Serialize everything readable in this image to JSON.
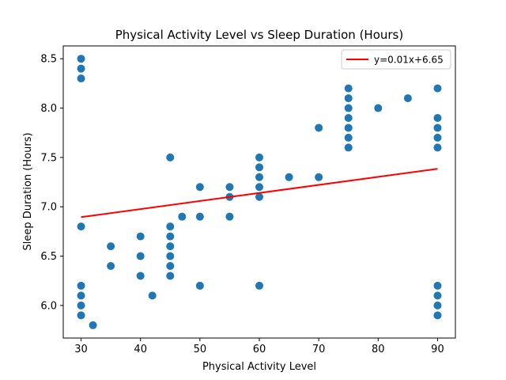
{
  "chart_data": {
    "type": "scatter",
    "title": "Physical Activity Level vs Sleep Duration (Hours)",
    "xlabel": "Physical Activity Level",
    "ylabel": "Sleep Duration (Hours)",
    "xlim": [
      27,
      93
    ],
    "ylim": [
      5.67,
      8.63
    ],
    "xticks": [
      30,
      40,
      50,
      60,
      70,
      80,
      90
    ],
    "yticks": [
      6.0,
      6.5,
      7.0,
      7.5,
      8.0,
      8.5
    ],
    "grid": false,
    "legend_position": "top-right",
    "points_color": "#1f77b4",
    "points": [
      [
        30,
        8.5
      ],
      [
        30,
        8.4
      ],
      [
        30,
        8.3
      ],
      [
        30,
        6.8
      ],
      [
        30,
        6.2
      ],
      [
        30,
        6.1
      ],
      [
        30,
        6.0
      ],
      [
        30,
        5.9
      ],
      [
        32,
        5.8
      ],
      [
        35,
        6.6
      ],
      [
        35,
        6.4
      ],
      [
        40,
        6.7
      ],
      [
        40,
        6.5
      ],
      [
        40,
        6.3
      ],
      [
        42,
        6.1
      ],
      [
        45,
        7.5
      ],
      [
        45,
        6.8
      ],
      [
        45,
        6.7
      ],
      [
        45,
        6.6
      ],
      [
        45,
        6.5
      ],
      [
        45,
        6.4
      ],
      [
        45,
        6.3
      ],
      [
        47,
        6.9
      ],
      [
        50,
        7.2
      ],
      [
        50,
        6.9
      ],
      [
        50,
        6.2
      ],
      [
        55,
        7.2
      ],
      [
        55,
        7.1
      ],
      [
        55,
        6.9
      ],
      [
        60,
        7.5
      ],
      [
        60,
        7.4
      ],
      [
        60,
        7.3
      ],
      [
        60,
        7.2
      ],
      [
        60,
        7.1
      ],
      [
        60,
        6.2
      ],
      [
        65,
        7.3
      ],
      [
        70,
        7.8
      ],
      [
        70,
        7.3
      ],
      [
        75,
        8.2
      ],
      [
        75,
        8.1
      ],
      [
        75,
        8.0
      ],
      [
        75,
        7.9
      ],
      [
        75,
        7.8
      ],
      [
        75,
        7.7
      ],
      [
        75,
        7.6
      ],
      [
        80,
        8.0
      ],
      [
        85,
        8.1
      ],
      [
        90,
        8.2
      ],
      [
        90,
        7.9
      ],
      [
        90,
        7.8
      ],
      [
        90,
        7.7
      ],
      [
        90,
        7.6
      ],
      [
        90,
        6.2
      ],
      [
        90,
        6.1
      ],
      [
        90,
        6.0
      ],
      [
        90,
        5.9
      ]
    ],
    "fit_line": {
      "label": "y=0.01x+6.65",
      "color": "#ff0000",
      "x_start": 30,
      "y_start": 6.895,
      "x_end": 90,
      "y_end": 7.385
    }
  }
}
